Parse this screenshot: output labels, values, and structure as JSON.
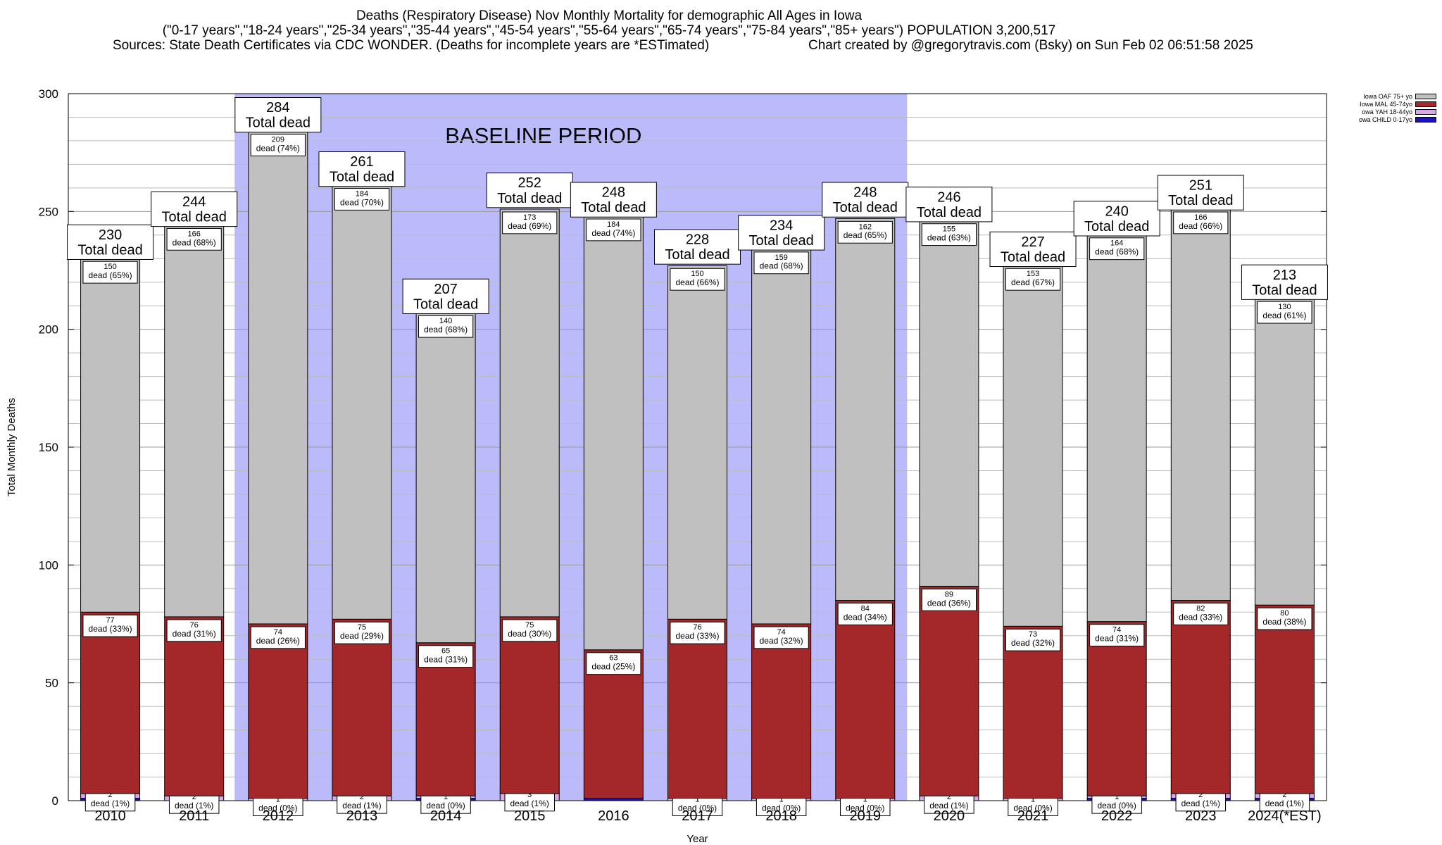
{
  "header": {
    "title": "Deaths (Respiratory Disease) Nov Monthly Mortality for demographic All Ages in Iowa",
    "subtitle": "(\"0-17 years\",\"18-24 years\",\"25-34 years\",\"35-44 years\",\"45-54 years\",\"55-64 years\",\"65-74 years\",\"75-84 years\",\"85+ years\") POPULATION 3,200,517",
    "sources": "Sources: State Death Certificates via CDC WONDER. (Deaths for incomplete years are *ESTimated)",
    "credit": "Chart created by @gregorytravis.com (Bsky) on Sun Feb 02 06:51:58 2025"
  },
  "chart_data": {
    "type": "bar",
    "stacked": true,
    "ylabel": "Total Monthly Deaths",
    "xlabel": "Year",
    "ylim": [
      0,
      300
    ],
    "yticks": [
      0,
      50,
      100,
      150,
      200,
      250,
      300
    ],
    "grid": true,
    "legend_position": "top-right",
    "categories": [
      "2010",
      "2011",
      "2012",
      "2013",
      "2014",
      "2015",
      "2016",
      "2017",
      "2018",
      "2019",
      "2020",
      "2021",
      "2022",
      "2023",
      "2024(*EST)"
    ],
    "baseline": {
      "label": "BASELINE PERIOD",
      "from": "2012",
      "to": "2019",
      "color": "#bbbbfc"
    },
    "total_label_suffix": "Total dead",
    "segment_label_word": "dead",
    "totals": [
      230,
      244,
      284,
      261,
      207,
      252,
      248,
      228,
      234,
      248,
      246,
      227,
      240,
      251,
      213
    ],
    "series": [
      {
        "name": "owa CHILD 0-17yo",
        "color": "#1a10c8",
        "values": [
          1,
          0,
          0,
          0,
          1,
          0,
          1,
          0,
          0,
          0,
          0,
          0,
          1,
          1,
          1
        ],
        "labels": []
      },
      {
        "name": "owa YAH 18-44yo",
        "color": "#d9a8e8",
        "values": [
          2,
          2,
          1,
          2,
          1,
          3,
          0,
          1,
          1,
          1,
          2,
          1,
          1,
          2,
          2
        ],
        "labels": [
          "2\ndead (1%)",
          "2\ndead (1%)",
          "1\ndead (0%)",
          "2\ndead (1%)",
          "1\ndead (0%)",
          "3\ndead (1%)",
          "",
          "1\ndead (0%)",
          "1\ndead (0%)",
          "1\ndead (0%)",
          "2\ndead (1%)",
          "1\ndead (0%)",
          "1\ndead (0%)",
          "2\ndead (1%)",
          "2\ndead (1%)"
        ]
      },
      {
        "name": "Iowa MAL 45-74yo",
        "color": "#a4282a",
        "values": [
          77,
          76,
          74,
          75,
          65,
          75,
          63,
          76,
          74,
          84,
          89,
          73,
          74,
          82,
          80
        ],
        "labels": [
          "77\ndead (33%)",
          "76\ndead (31%)",
          "74\ndead (26%)",
          "75\ndead (29%)",
          "65\ndead (31%)",
          "75\ndead (30%)",
          "63\ndead (25%)",
          "76\ndead (33%)",
          "74\ndead (32%)",
          "84\ndead (34%)",
          "89\ndead (36%)",
          "73\ndead (32%)",
          "74\ndead (31%)",
          "82\ndead (33%)",
          "80\ndead (38%)"
        ]
      },
      {
        "name": "Iowa OAF 75+ yo",
        "color": "#c0c0c0",
        "values": [
          150,
          166,
          209,
          184,
          140,
          173,
          184,
          150,
          159,
          162,
          155,
          153,
          164,
          166,
          130
        ],
        "labels": [
          "150\ndead (65%)",
          "166\ndead (68%)",
          "209\ndead (74%)",
          "184\ndead (70%)",
          "140\ndead (68%)",
          "173\ndead (69%)",
          "184\ndead (74%)",
          "150\ndead (66%)",
          "159\ndead (68%)",
          "162\ndead (65%)",
          "155\ndead (63%)",
          "153\ndead (67%)",
          "164\ndead (68%)",
          "166\ndead (66%)",
          "130\ndead (61%)"
        ]
      }
    ],
    "legend_order": [
      "Iowa OAF 75+ yo",
      "Iowa MAL 45-74yo",
      "owa YAH 18-44yo",
      "owa CHILD 0-17yo"
    ]
  }
}
